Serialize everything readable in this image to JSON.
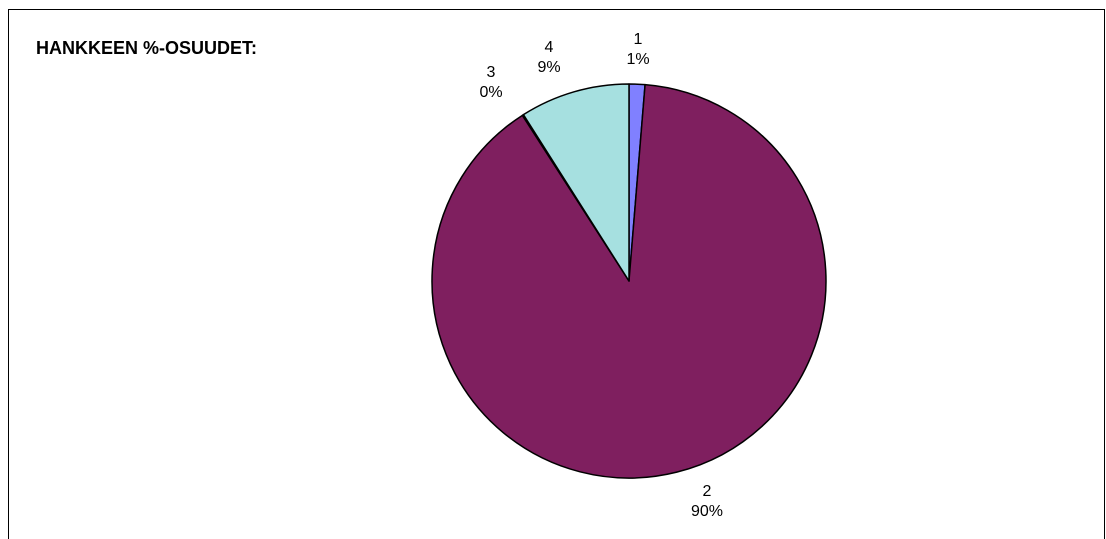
{
  "chart_data": {
    "type": "pie",
    "title": "HANKKEEN %-OSUUDET:",
    "slices": [
      {
        "category": "1",
        "percent_label": "1%",
        "value": 1.3,
        "color": "#8080ff"
      },
      {
        "category": "2",
        "percent_label": "90%",
        "value": 89.6,
        "color": "#7f1f5f"
      },
      {
        "category": "3",
        "percent_label": "0%",
        "value": 0.1,
        "color": "#ffffcc"
      },
      {
        "category": "4",
        "percent_label": "9%",
        "value": 9.0,
        "color": "#a6e0e0"
      }
    ]
  }
}
